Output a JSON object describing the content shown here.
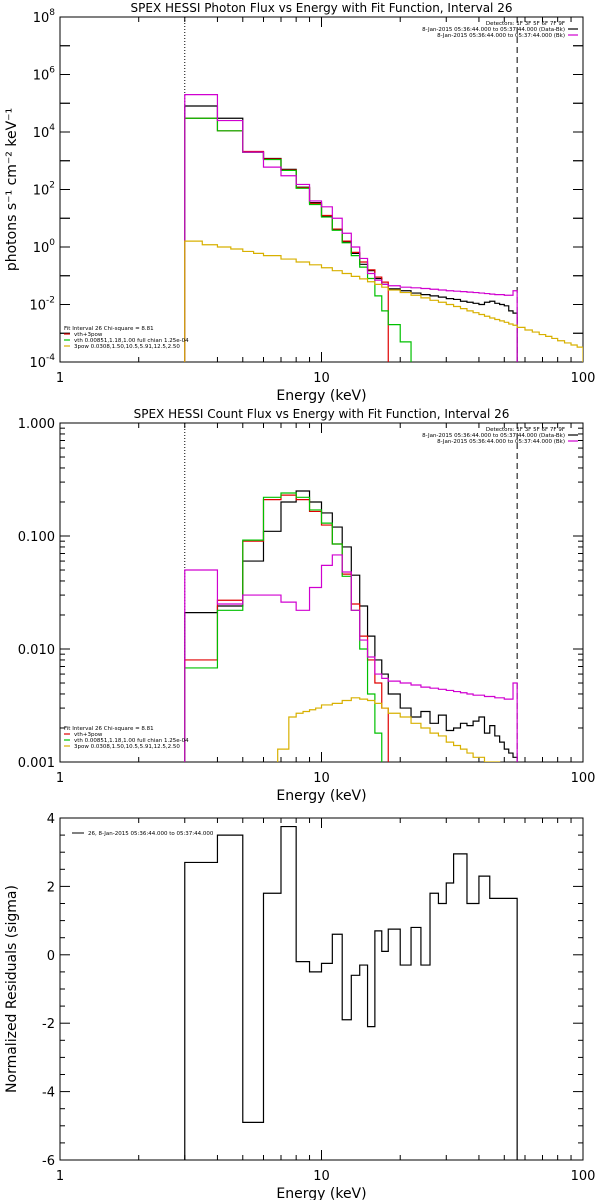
{
  "chart_data": [
    {
      "type": "line",
      "title": "SPEX HESSI Photon Flux vs Energy with Fit Function, Interval 26",
      "xlabel": "Energy (keV)",
      "ylabel": "photons s⁻¹ cm⁻² keV⁻¹",
      "xscale": "log",
      "yscale": "log",
      "xlim": [
        1,
        100
      ],
      "ylim": [
        0.0001,
        100000000
      ],
      "x_ticks": [
        1,
        10,
        100
      ],
      "x_tick_labels": [
        "1",
        "10",
        "100"
      ],
      "y_ticks": [
        0.0001,
        0.01,
        1,
        100,
        10000,
        1000000,
        100000000
      ],
      "y_tick_labels": [
        {
          "base": "10",
          "exp": "-4"
        },
        {
          "base": "10",
          "exp": "-2"
        },
        {
          "base": "10",
          "exp": "0"
        },
        {
          "base": "10",
          "exp": "2"
        },
        {
          "base": "10",
          "exp": "4"
        },
        {
          "base": "10",
          "exp": "6"
        },
        {
          "base": "10",
          "exp": "8"
        }
      ],
      "vlines": [
        {
          "x": 3,
          "style": "dotted"
        },
        {
          "x": 56,
          "style": "dashed"
        }
      ],
      "legend_top": [
        "Detectors: 1F 3F 5F 6F 7F 9F",
        "8-Jan-2015 05:36:44.000 to 05:37:44.000 (Data-Bk)",
        "8-Jan-2015 05:36:44.000 to 05:37:44.000 (Bk)"
      ],
      "legend_top_colors": [
        "#000000",
        "#000000",
        "#d000d0"
      ],
      "legend_bottom": [
        "Fit Interval 26   Chi-square = 8.81",
        "vth+3pow",
        "vth 0.00851,1.18,1.00  full chian 1.25e-04",
        "3pow 0.0308,1.50,10.5,5.91,12.5,2.50"
      ],
      "legend_bottom_colors": [
        "#000000",
        "#e00000",
        "#00c000",
        "#d8b000"
      ],
      "series": [
        {
          "color": "#000000",
          "edges": [
            3,
            4,
            5,
            6,
            7,
            8,
            9,
            10,
            11,
            12,
            13,
            14,
            15,
            16,
            17,
            18,
            20,
            22,
            24,
            26,
            28,
            30,
            32,
            34,
            36,
            38,
            40,
            42,
            44,
            46,
            48,
            50,
            52,
            54,
            56
          ],
          "values": [
            80000,
            30000,
            2000,
            1200,
            500,
            120,
            35,
            12,
            4,
            1.5,
            0.6,
            0.25,
            0.15,
            0.08,
            0.05,
            0.035,
            0.03,
            0.025,
            0.022,
            0.02,
            0.018,
            0.016,
            0.015,
            0.013,
            0.012,
            0.011,
            0.01,
            0.012,
            0.013,
            0.011,
            0.01,
            0.009,
            0.006,
            0.005
          ]
        },
        {
          "color": "#e00000",
          "edges": [
            3,
            4,
            5,
            6,
            7,
            8,
            9,
            10,
            11,
            12,
            13,
            14,
            15,
            16,
            17,
            18
          ],
          "values": [
            30000,
            11000,
            2100,
            1150,
            480,
            115,
            33,
            12.5,
            4.2,
            1.6,
            0.65,
            0.3,
            0.16,
            0.09,
            0.06
          ]
        },
        {
          "color": "#00c000",
          "edges": [
            3,
            4,
            5,
            6,
            7,
            8,
            9,
            10,
            11,
            12,
            13,
            14,
            15,
            16,
            17,
            18,
            20,
            22,
            24
          ],
          "values": [
            30000,
            11000,
            2000,
            1100,
            460,
            110,
            30,
            11,
            3.8,
            1.4,
            0.5,
            0.2,
            0.08,
            0.02,
            0.006,
            0.002,
            0.0005,
            8e-05
          ]
        },
        {
          "color": "#d000d0",
          "edges": [
            3,
            4,
            5,
            6,
            7,
            8,
            9,
            10,
            11,
            12,
            13,
            14,
            15,
            16,
            17,
            18,
            20,
            22,
            24,
            26,
            28,
            30,
            32,
            34,
            36,
            38,
            40,
            42,
            44,
            46,
            48,
            50,
            52,
            54,
            56
          ],
          "values": [
            200000,
            25000,
            2000,
            600,
            300,
            150,
            40,
            25,
            10,
            3,
            1,
            0.4,
            0.12,
            0.07,
            0.05,
            0.045,
            0.04,
            0.038,
            0.036,
            0.034,
            0.032,
            0.03,
            0.029,
            0.028,
            0.027,
            0.026,
            0.025,
            0.024,
            0.023,
            0.022,
            0.022,
            0.021,
            0.021,
            0.03
          ]
        },
        {
          "color": "#d8b000",
          "edges": [
            3,
            3.5,
            4,
            4.5,
            5,
            5.5,
            6,
            7,
            8,
            9,
            10,
            11,
            12,
            13,
            14,
            15,
            16,
            17,
            18,
            20,
            22,
            24,
            26,
            28,
            30,
            32,
            34,
            36,
            38,
            40,
            42,
            44,
            46,
            48,
            50,
            52,
            54,
            56,
            60,
            64,
            68,
            72,
            76,
            80,
            85,
            90,
            95,
            100
          ],
          "values": [
            1.6,
            1.2,
            1.0,
            0.85,
            0.7,
            0.6,
            0.5,
            0.38,
            0.3,
            0.24,
            0.19,
            0.15,
            0.12,
            0.095,
            0.078,
            0.062,
            0.05,
            0.04,
            0.032,
            0.026,
            0.021,
            0.017,
            0.014,
            0.012,
            0.01,
            0.0085,
            0.0072,
            0.006,
            0.0052,
            0.0045,
            0.0039,
            0.0034,
            0.003,
            0.0027,
            0.0024,
            0.0021,
            0.0019,
            0.0016,
            0.0013,
            0.0011,
            0.0009,
            0.00078,
            0.00066,
            0.00055,
            0.00046,
            0.00039,
            0.00033
          ]
        }
      ]
    },
    {
      "type": "line",
      "title": "SPEX HESSI Count Flux vs Energy with Fit Function, Interval 26",
      "xlabel": "Energy (keV)",
      "ylabel": "",
      "xscale": "log",
      "yscale": "log",
      "xlim": [
        1,
        100
      ],
      "ylim": [
        0.001,
        1
      ],
      "x_ticks": [
        1,
        10,
        100
      ],
      "x_tick_labels": [
        "1",
        "10",
        "100"
      ],
      "y_ticks": [
        0.001,
        0.01,
        0.1,
        1
      ],
      "y_tick_labels": [
        "0.001",
        "0.010",
        "0.100",
        "1.000"
      ],
      "vlines": [
        {
          "x": 3,
          "style": "dotted"
        },
        {
          "x": 56,
          "style": "dashed"
        }
      ],
      "legend_top": [
        "Detectors: 1F 3F 5F 6F 7F 9F",
        "8-Jan-2015 05:36:44.000 to 05:37:44.000 (Data-Bk)",
        "8-Jan-2015 05:36:44.000 to 05:37:44.000 (Bk)"
      ],
      "legend_top_colors": [
        "#000000",
        "#000000",
        "#d000d0"
      ],
      "legend_bottom": [
        "Fit Interval 26   Chi-square = 8.81",
        "vth+3pow",
        "vth 0.00851,1.18,1.00  full chian 1.25e-04",
        "3pow 0.0308,1.50,10.5,5.91,12.5,2.50"
      ],
      "legend_bottom_colors": [
        "#000000",
        "#e00000",
        "#00c000",
        "#d8b000"
      ],
      "series": [
        {
          "color": "#000000",
          "edges": [
            3,
            4,
            5,
            6,
            7,
            8,
            9,
            10,
            11,
            12,
            13,
            14,
            15,
            16,
            17,
            18,
            20,
            22,
            24,
            26,
            28,
            30,
            32,
            34,
            36,
            38,
            40,
            42,
            44,
            46,
            48,
            50,
            52,
            54,
            56
          ],
          "values": [
            0.021,
            0.024,
            0.06,
            0.11,
            0.2,
            0.25,
            0.2,
            0.16,
            0.12,
            0.08,
            0.045,
            0.024,
            0.013,
            0.008,
            0.006,
            0.004,
            0.003,
            0.0025,
            0.0028,
            0.0022,
            0.0026,
            0.0019,
            0.002,
            0.0022,
            0.0021,
            0.0023,
            0.0025,
            0.0018,
            0.0021,
            0.0017,
            0.0015,
            0.0013,
            0.0012,
            0.0011
          ]
        },
        {
          "color": "#e00000",
          "edges": [
            3,
            4,
            5,
            6,
            7,
            8,
            9,
            10,
            11,
            12,
            13,
            14,
            15,
            16,
            17,
            18
          ],
          "values": [
            0.008,
            0.027,
            0.09,
            0.21,
            0.23,
            0.21,
            0.165,
            0.125,
            0.085,
            0.046,
            0.025,
            0.013,
            0.008,
            0.005,
            0.003
          ]
        },
        {
          "color": "#00c000",
          "edges": [
            3,
            4,
            5,
            6,
            7,
            8,
            9,
            10,
            11,
            12,
            13,
            14,
            15,
            16,
            17,
            18
          ],
          "values": [
            0.0068,
            0.022,
            0.092,
            0.22,
            0.24,
            0.22,
            0.17,
            0.13,
            0.085,
            0.044,
            0.022,
            0.01,
            0.004,
            0.0018,
            0.0009
          ]
        },
        {
          "color": "#d000d0",
          "edges": [
            3,
            4,
            5,
            6,
            7,
            8,
            9,
            10,
            11,
            12,
            13,
            14,
            15,
            16,
            17,
            18,
            20,
            22,
            24,
            26,
            28,
            30,
            32,
            34,
            36,
            38,
            40,
            42,
            44,
            46,
            48,
            50,
            52,
            54,
            56
          ],
          "values": [
            0.05,
            0.025,
            0.03,
            0.03,
            0.026,
            0.022,
            0.035,
            0.055,
            0.068,
            0.048,
            0.022,
            0.012,
            0.0085,
            0.006,
            0.0055,
            0.0052,
            0.005,
            0.0048,
            0.0046,
            0.0045,
            0.0044,
            0.0043,
            0.0042,
            0.0041,
            0.004,
            0.0039,
            0.0039,
            0.0038,
            0.0038,
            0.0037,
            0.0037,
            0.0036,
            0.0036,
            0.005
          ]
        },
        {
          "color": "#d8b000",
          "edges": [
            6.8,
            7.5,
            8,
            8.5,
            9,
            9.5,
            10,
            11,
            12,
            13,
            14,
            15,
            16,
            17,
            18,
            20,
            22,
            24,
            26,
            28,
            30,
            32,
            34,
            36,
            38,
            40,
            42,
            44,
            46,
            48
          ],
          "values": [
            0.0013,
            0.0025,
            0.0027,
            0.0028,
            0.0029,
            0.003,
            0.0032,
            0.0033,
            0.0035,
            0.0037,
            0.0036,
            0.0035,
            0.0033,
            0.003,
            0.0027,
            0.0025,
            0.0022,
            0.002,
            0.0018,
            0.0017,
            0.0015,
            0.0014,
            0.0013,
            0.0012,
            0.0011,
            0.0011,
            0.001,
            0.001,
            0.001
          ]
        }
      ]
    },
    {
      "type": "line",
      "title": "",
      "xlabel": "Energy (keV)",
      "ylabel": "Normalized Residuals (sigma)",
      "xscale": "log",
      "yscale": "linear",
      "xlim": [
        1,
        100
      ],
      "ylim": [
        -6,
        4
      ],
      "x_ticks": [
        1,
        10,
        100
      ],
      "x_tick_labels": [
        "1",
        "10",
        "100"
      ],
      "y_ticks": [
        -6,
        -4,
        -2,
        0,
        2,
        4
      ],
      "y_tick_labels": [
        "-6",
        "-4",
        "-2",
        "0",
        "2",
        "4"
      ],
      "legend_top": [
        "26,  8-Jan-2015 05:36:44.000 to 05:37:44.000"
      ],
      "series": [
        {
          "color": "#000000",
          "edges": [
            3,
            4,
            5,
            6,
            7,
            8,
            9,
            10,
            11,
            12,
            13,
            14,
            15,
            16,
            17,
            18,
            20,
            22,
            24,
            26,
            28,
            30,
            32,
            34,
            36,
            38,
            40,
            42,
            44,
            46,
            48,
            50,
            52,
            54,
            56
          ],
          "values": [
            2.7,
            3.5,
            -4.9,
            1.8,
            3.75,
            -0.2,
            -0.5,
            -0.25,
            0.6,
            -1.9,
            -0.6,
            -0.3,
            -2.1,
            0.7,
            0.1,
            0.75,
            -0.3,
            0.8,
            -0.3,
            1.8,
            1.5,
            2.1,
            2.95,
            2.95,
            1.5,
            1.5,
            2.3,
            2.3,
            1.65,
            1.65,
            1.65,
            1.65,
            1.65,
            1.65
          ]
        }
      ]
    }
  ]
}
